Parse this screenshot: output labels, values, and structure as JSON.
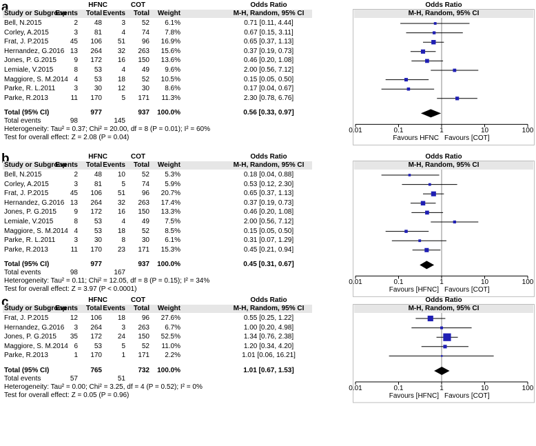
{
  "header": {
    "study_col": "Study or Subgroup",
    "group1": "HFNC",
    "group2": "COT",
    "events": "Events",
    "total": "Total",
    "weight": "Weight",
    "or_title": "Odds Ratio",
    "or_method": "M-H, Random, 95% CI"
  },
  "chart_data": [
    {
      "type": "forest",
      "panel_label": "a",
      "studies": [
        {
          "name": "Bell, N.2015",
          "e1": "2",
          "t1": "48",
          "e2": "3",
          "t2": "52",
          "weight": "6.1%",
          "ci_text": "0.71 [0.11, 4.44]",
          "or": 0.71,
          "lo": 0.11,
          "hi": 4.44,
          "w": 6.1
        },
        {
          "name": "Corley, A.2015",
          "e1": "3",
          "t1": "81",
          "e2": "4",
          "t2": "74",
          "weight": "7.8%",
          "ci_text": "0.67 [0.15, 3.11]",
          "or": 0.67,
          "lo": 0.15,
          "hi": 3.11,
          "w": 7.8
        },
        {
          "name": "Frat, J. P.2015",
          "e1": "45",
          "t1": "106",
          "e2": "51",
          "t2": "96",
          "weight": "16.9%",
          "ci_text": "0.65 [0.37, 1.13]",
          "or": 0.65,
          "lo": 0.37,
          "hi": 1.13,
          "w": 16.9
        },
        {
          "name": "Hernandez, G.2016",
          "e1": "13",
          "t1": "264",
          "e2": "32",
          "t2": "263",
          "weight": "15.6%",
          "ci_text": "0.37 [0.19, 0.73]",
          "or": 0.37,
          "lo": 0.19,
          "hi": 0.73,
          "w": 15.6
        },
        {
          "name": "Jones, P. G.2015",
          "e1": "9",
          "t1": "172",
          "e2": "16",
          "t2": "150",
          "weight": "13.6%",
          "ci_text": "0.46 [0.20, 1.08]",
          "or": 0.46,
          "lo": 0.2,
          "hi": 1.08,
          "w": 13.6
        },
        {
          "name": "Lemiale, V.2015",
          "e1": "8",
          "t1": "53",
          "e2": "4",
          "t2": "49",
          "weight": "9.6%",
          "ci_text": "2.00 [0.56, 7.12]",
          "or": 2.0,
          "lo": 0.56,
          "hi": 7.12,
          "w": 9.6
        },
        {
          "name": "Maggiore, S. M.2014",
          "e1": "4",
          "t1": "53",
          "e2": "18",
          "t2": "52",
          "weight": "10.5%",
          "ci_text": "0.15 [0.05, 0.50]",
          "or": 0.15,
          "lo": 0.05,
          "hi": 0.5,
          "w": 10.5
        },
        {
          "name": "Parke, R. L.2011",
          "e1": "3",
          "t1": "30",
          "e2": "12",
          "t2": "30",
          "weight": "8.6%",
          "ci_text": "0.17 [0.04, 0.67]",
          "or": 0.17,
          "lo": 0.04,
          "hi": 0.67,
          "w": 8.6
        },
        {
          "name": "Parke, R.2013",
          "e1": "11",
          "t1": "170",
          "e2": "5",
          "t2": "171",
          "weight": "11.3%",
          "ci_text": "2.30 [0.78, 6.76]",
          "or": 2.3,
          "lo": 0.78,
          "hi": 6.76,
          "w": 11.3
        }
      ],
      "total": {
        "label": "Total (95% CI)",
        "t1": "977",
        "t2": "937",
        "weight": "100.0%",
        "ci_text": "0.56 [0.33, 0.97]",
        "or": 0.56,
        "lo": 0.33,
        "hi": 0.97
      },
      "total_events": {
        "label": "Total events",
        "e1": "98",
        "e2": "145"
      },
      "heterogeneity": "Heterogeneity: Tau² = 0.37; Chi² = 20.00, df = 8 (P = 0.01); I² = 60%",
      "overall_effect": "Test for overall effect: Z = 2.08 (P = 0.04)",
      "axis": {
        "scale": "log",
        "ticks": [
          "0.01",
          "0.1",
          "1",
          "10",
          "100"
        ],
        "tick_values": [
          0.01,
          0.1,
          1,
          10,
          100
        ]
      },
      "favours_left": "Favours HFNC",
      "favours_right": "Favours [COT]"
    },
    {
      "type": "forest",
      "panel_label": "b",
      "studies": [
        {
          "name": "Bell, N.2015",
          "e1": "2",
          "t1": "48",
          "e2": "10",
          "t2": "52",
          "weight": "5.3%",
          "ci_text": "0.18 [0.04, 0.88]",
          "or": 0.18,
          "lo": 0.04,
          "hi": 0.88,
          "w": 5.3
        },
        {
          "name": "Corley, A.2015",
          "e1": "3",
          "t1": "81",
          "e2": "5",
          "t2": "74",
          "weight": "5.9%",
          "ci_text": "0.53 [0.12, 2.30]",
          "or": 0.53,
          "lo": 0.12,
          "hi": 2.3,
          "w": 5.9
        },
        {
          "name": "Frat, J. P.2015",
          "e1": "45",
          "t1": "106",
          "e2": "51",
          "t2": "96",
          "weight": "20.7%",
          "ci_text": "0.65 [0.37, 1.13]",
          "or": 0.65,
          "lo": 0.37,
          "hi": 1.13,
          "w": 20.7
        },
        {
          "name": "Hernandez, G.2016",
          "e1": "13",
          "t1": "264",
          "e2": "32",
          "t2": "263",
          "weight": "17.4%",
          "ci_text": "0.37 [0.19, 0.73]",
          "or": 0.37,
          "lo": 0.19,
          "hi": 0.73,
          "w": 17.4
        },
        {
          "name": "Jones, P. G.2015",
          "e1": "9",
          "t1": "172",
          "e2": "16",
          "t2": "150",
          "weight": "13.3%",
          "ci_text": "0.46 [0.20, 1.08]",
          "or": 0.46,
          "lo": 0.2,
          "hi": 1.08,
          "w": 13.3
        },
        {
          "name": "Lemiale, V.2015",
          "e1": "8",
          "t1": "53",
          "e2": "4",
          "t2": "49",
          "weight": "7.5%",
          "ci_text": "2.00 [0.56, 7.12]",
          "or": 2.0,
          "lo": 0.56,
          "hi": 7.12,
          "w": 7.5
        },
        {
          "name": "Maggiore, S. M.2014",
          "e1": "4",
          "t1": "53",
          "e2": "18",
          "t2": "52",
          "weight": "8.5%",
          "ci_text": "0.15 [0.05, 0.50]",
          "or": 0.15,
          "lo": 0.05,
          "hi": 0.5,
          "w": 8.5
        },
        {
          "name": "Parke, R. L.2011",
          "e1": "3",
          "t1": "30",
          "e2": "8",
          "t2": "30",
          "weight": "6.1%",
          "ci_text": "0.31 [0.07, 1.29]",
          "or": 0.31,
          "lo": 0.07,
          "hi": 1.29,
          "w": 6.1
        },
        {
          "name": "Parke, R.2013",
          "e1": "11",
          "t1": "170",
          "e2": "23",
          "t2": "171",
          "weight": "15.3%",
          "ci_text": "0.45 [0.21, 0.94]",
          "or": 0.45,
          "lo": 0.21,
          "hi": 0.94,
          "w": 15.3
        }
      ],
      "total": {
        "label": "Total (95% CI)",
        "t1": "977",
        "t2": "937",
        "weight": "100.0%",
        "ci_text": "0.45 [0.31, 0.67]",
        "or": 0.45,
        "lo": 0.31,
        "hi": 0.67
      },
      "total_events": {
        "label": "Total events",
        "e1": "98",
        "e2": "167"
      },
      "heterogeneity": "Heterogeneity: Tau² = 0.11; Chi² = 12.05, df = 8 (P = 0.15); I² = 34%",
      "overall_effect": "Test for overall effect: Z = 3.97 (P < 0.0001)",
      "axis": {
        "scale": "log",
        "ticks": [
          "0.01",
          "0.1",
          "1",
          "10",
          "100"
        ],
        "tick_values": [
          0.01,
          0.1,
          1,
          10,
          100
        ]
      },
      "favours_left": "Favours [HFNC]",
      "favours_right": "Favours [COT]"
    },
    {
      "type": "forest",
      "panel_label": "c",
      "studies": [
        {
          "name": "Frat, J. P.2015",
          "e1": "12",
          "t1": "106",
          "e2": "18",
          "t2": "96",
          "weight": "27.6%",
          "ci_text": "0.55 [0.25, 1.22]",
          "or": 0.55,
          "lo": 0.25,
          "hi": 1.22,
          "w": 27.6
        },
        {
          "name": "Hernandez, G.2016",
          "e1": "3",
          "t1": "264",
          "e2": "3",
          "t2": "263",
          "weight": "6.7%",
          "ci_text": "1.00 [0.20, 4.98]",
          "or": 1.0,
          "lo": 0.2,
          "hi": 4.98,
          "w": 6.7
        },
        {
          "name": "Jones, P. G.2015",
          "e1": "35",
          "t1": "172",
          "e2": "24",
          "t2": "150",
          "weight": "52.5%",
          "ci_text": "1.34 [0.76, 2.38]",
          "or": 1.34,
          "lo": 0.76,
          "hi": 2.38,
          "w": 52.5
        },
        {
          "name": "Maggiore, S. M.2014",
          "e1": "6",
          "t1": "53",
          "e2": "5",
          "t2": "52",
          "weight": "11.0%",
          "ci_text": "1.20 [0.34, 4.20]",
          "or": 1.2,
          "lo": 0.34,
          "hi": 4.2,
          "w": 11.0
        },
        {
          "name": "Parke, R.2013",
          "e1": "1",
          "t1": "170",
          "e2": "1",
          "t2": "171",
          "weight": "2.2%",
          "ci_text": "1.01 [0.06, 16.21]",
          "or": 1.01,
          "lo": 0.06,
          "hi": 16.21,
          "w": 2.2
        }
      ],
      "total": {
        "label": "Total (95% CI)",
        "t1": "765",
        "t2": "732",
        "weight": "100.0%",
        "ci_text": "1.01 [0.67, 1.53]",
        "or": 1.01,
        "lo": 0.67,
        "hi": 1.53
      },
      "total_events": {
        "label": "Total events",
        "e1": "57",
        "e2": "51"
      },
      "heterogeneity": "Heterogeneity: Tau² = 0.00; Chi² = 3.25, df = 4 (P = 0.52); I² = 0%",
      "overall_effect": "Test for overall effect: Z = 0.05 (P = 0.96)",
      "axis": {
        "scale": "log",
        "ticks": [
          "0.01",
          "0.1",
          "1",
          "10",
          "100"
        ],
        "tick_values": [
          0.01,
          0.1,
          1,
          10,
          100
        ]
      },
      "favours_left": "Favours [HFNC]",
      "favours_right": "Favours [COT]"
    }
  ],
  "colors": {
    "marker": "#1f1fb4",
    "diamond": "#000000",
    "header_bg": "#e6e6e6",
    "line": "#000000",
    "ref_line": "#888888"
  }
}
